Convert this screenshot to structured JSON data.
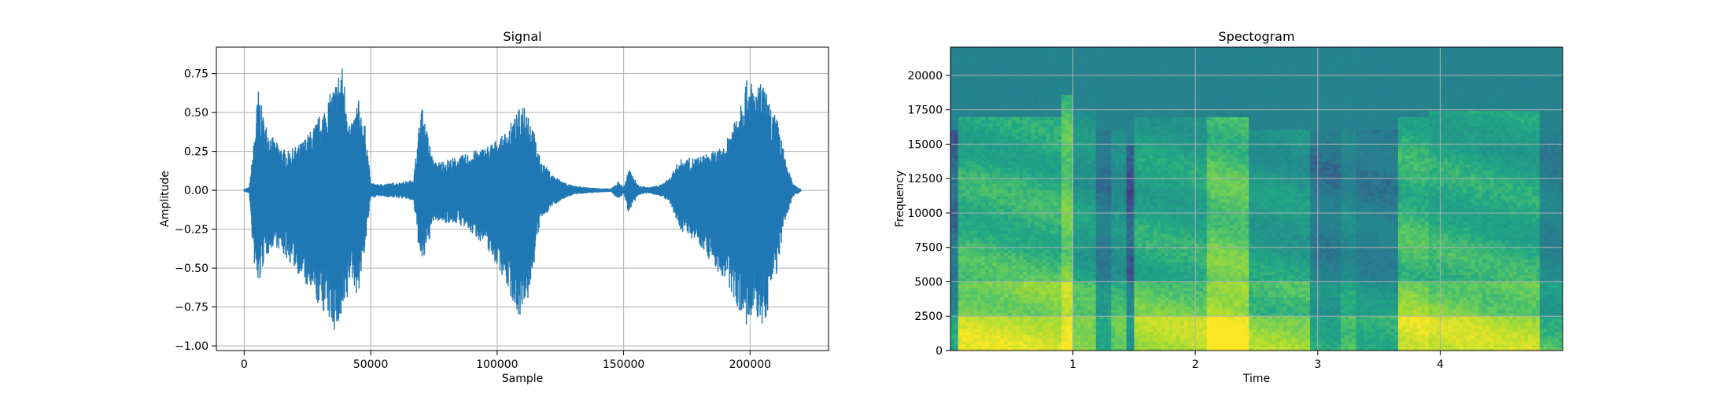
{
  "chart_data": [
    {
      "type": "line",
      "title": "Signal",
      "xlabel": "Sample",
      "ylabel": "Amplitude",
      "xlim": [
        -11000,
        231000
      ],
      "ylim": [
        -1.03,
        0.92
      ],
      "grid": true,
      "color": "#1f77b4",
      "xticks": [
        0,
        50000,
        100000,
        150000,
        200000
      ],
      "xtick_labels": [
        "0",
        "50000",
        "100000",
        "150000",
        "200000"
      ],
      "yticks": [
        -1.0,
        -0.75,
        -0.5,
        -0.25,
        0.0,
        0.25,
        0.5,
        0.75
      ],
      "ytick_labels": [
        "−1.00",
        "−0.75",
        "−0.50",
        "−0.25",
        "0.00",
        "0.25",
        "0.50",
        "0.75"
      ],
      "series": [
        {
          "envelope_x": [
            0,
            2000,
            3500,
            5500,
            8000,
            12000,
            17000,
            22000,
            27000,
            32000,
            36000,
            38500,
            40500,
            42000,
            45000,
            48000,
            50000,
            53000,
            60000,
            65000,
            67000,
            70000,
            75000,
            85000,
            95000,
            102000,
            108000,
            111000,
            114000,
            117000,
            122000,
            127000,
            130000,
            135000,
            145000,
            148000,
            150000,
            152000,
            156000,
            160000,
            165000,
            168000,
            172000,
            180000,
            190000,
            195000,
            198000,
            200000,
            202000,
            205000,
            208000,
            211000,
            214000,
            217000,
            220000
          ],
          "envelope_max": [
            0.01,
            0.02,
            0.25,
            0.66,
            0.45,
            0.32,
            0.25,
            0.3,
            0.4,
            0.55,
            0.7,
            0.83,
            0.62,
            0.4,
            0.6,
            0.4,
            0.05,
            0.04,
            0.05,
            0.06,
            0.08,
            0.56,
            0.18,
            0.22,
            0.28,
            0.35,
            0.5,
            0.61,
            0.42,
            0.2,
            0.1,
            0.05,
            0.03,
            0.02,
            0.01,
            0.06,
            0.02,
            0.14,
            0.03,
            0.02,
            0.04,
            0.08,
            0.2,
            0.22,
            0.28,
            0.55,
            0.7,
            0.72,
            0.66,
            0.7,
            0.55,
            0.45,
            0.2,
            0.04,
            0.01
          ],
          "envelope_min": [
            -0.01,
            -0.02,
            -0.42,
            -0.66,
            -0.45,
            -0.35,
            -0.45,
            -0.55,
            -0.7,
            -0.8,
            -0.92,
            -0.88,
            -0.78,
            -0.55,
            -0.7,
            -0.35,
            -0.05,
            -0.04,
            -0.05,
            -0.06,
            -0.08,
            -0.52,
            -0.2,
            -0.22,
            -0.35,
            -0.55,
            -0.8,
            -0.82,
            -0.55,
            -0.2,
            -0.1,
            -0.05,
            -0.03,
            -0.02,
            -0.01,
            -0.06,
            -0.02,
            -0.15,
            -0.03,
            -0.02,
            -0.04,
            -0.08,
            -0.25,
            -0.35,
            -0.6,
            -0.75,
            -0.88,
            -0.92,
            -0.8,
            -0.92,
            -0.7,
            -0.5,
            -0.2,
            -0.04,
            -0.01
          ]
        }
      ]
    },
    {
      "type": "heatmap",
      "title": "Spectogram",
      "xlabel": "Time",
      "ylabel": "Frequency",
      "xlim": [
        0,
        5.0
      ],
      "ylim": [
        0,
        22050
      ],
      "grid": true,
      "colormap": "viridis",
      "xticks": [
        1,
        2,
        3,
        4
      ],
      "xtick_labels": [
        "1",
        "2",
        "3",
        "4"
      ],
      "yticks": [
        0,
        2500,
        5000,
        7500,
        10000,
        12500,
        15000,
        17500,
        20000
      ],
      "ytick_labels": [
        "0",
        "2500",
        "5000",
        "7500",
        "10000",
        "12500",
        "15000",
        "17500",
        "20000"
      ],
      "segments": [
        {
          "t": [
            0.0,
            0.05
          ],
          "level": 0.35,
          "cutoff": 16000
        },
        {
          "t": [
            0.05,
            0.9
          ],
          "level": 0.7,
          "cutoff": 17000
        },
        {
          "t": [
            0.9,
            1.0
          ],
          "level": 0.8,
          "cutoff": 18500
        },
        {
          "t": [
            1.0,
            1.2
          ],
          "level": 0.6,
          "cutoff": 17500
        },
        {
          "t": [
            1.2,
            1.3
          ],
          "level": 0.4,
          "cutoff": 16000
        },
        {
          "t": [
            1.3,
            1.45
          ],
          "level": 0.55,
          "cutoff": 16000
        },
        {
          "t": [
            1.45,
            1.5
          ],
          "level": 0.3,
          "cutoff": 15000
        },
        {
          "t": [
            1.5,
            2.1
          ],
          "level": 0.65,
          "cutoff": 17000
        },
        {
          "t": [
            2.1,
            2.45
          ],
          "level": 0.78,
          "cutoff": 17000
        },
        {
          "t": [
            2.45,
            2.95
          ],
          "level": 0.6,
          "cutoff": 16000
        },
        {
          "t": [
            2.95,
            3.2
          ],
          "level": 0.4,
          "cutoff": 16000
        },
        {
          "t": [
            3.2,
            3.3
          ],
          "level": 0.5,
          "cutoff": 16000
        },
        {
          "t": [
            3.3,
            3.65
          ],
          "level": 0.42,
          "cutoff": 16000
        },
        {
          "t": [
            3.65,
            3.9
          ],
          "level": 0.72,
          "cutoff": 17000
        },
        {
          "t": [
            3.9,
            4.35
          ],
          "level": 0.68,
          "cutoff": 17500
        },
        {
          "t": [
            4.35,
            4.8
          ],
          "level": 0.66,
          "cutoff": 17500
        },
        {
          "t": [
            4.8,
            5.0
          ],
          "level": 0.45,
          "cutoff": 16000
        }
      ]
    }
  ]
}
